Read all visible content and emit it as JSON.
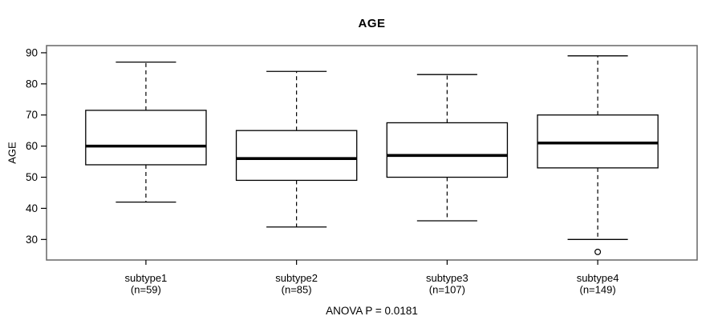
{
  "chart_data": {
    "type": "boxplot",
    "title": "AGE",
    "ylabel": "AGE",
    "xlabel": "",
    "annotation": "ANOVA P = 0.0181",
    "ylim": [
      23.4,
      92.3
    ],
    "xlim": [
      0.34,
      4.66
    ],
    "yticks": [
      30,
      40,
      50,
      60,
      70,
      80,
      90
    ],
    "grid": false,
    "categories": [
      "subtype1",
      "subtype2",
      "subtype3",
      "subtype4"
    ],
    "series": [
      {
        "name": "subtype1",
        "sublabel": "(n=59)",
        "n": 59,
        "position": 1,
        "whisker_low": 42,
        "q1": 54,
        "median": 60,
        "q3": 71.5,
        "whisker_high": 87,
        "outliers": []
      },
      {
        "name": "subtype2",
        "sublabel": "(n=85)",
        "n": 85,
        "position": 2,
        "whisker_low": 34,
        "q1": 49,
        "median": 56,
        "q3": 65,
        "whisker_high": 84,
        "outliers": []
      },
      {
        "name": "subtype3",
        "sublabel": "(n=107)",
        "n": 107,
        "position": 3,
        "whisker_low": 36,
        "q1": 50,
        "median": 57,
        "q3": 67.5,
        "whisker_high": 83,
        "outliers": []
      },
      {
        "name": "subtype4",
        "sublabel": "(n=149)",
        "n": 149,
        "position": 4,
        "whisker_low": 30,
        "q1": 53,
        "median": 61,
        "q3": 70,
        "whisker_high": 89,
        "outliers": [
          26
        ]
      }
    ],
    "colors": {
      "stroke": "#000000",
      "median": "#000000",
      "border": "#666666",
      "box_fill": "#ffffff",
      "text": "#000000",
      "background": "#ffffff"
    }
  }
}
